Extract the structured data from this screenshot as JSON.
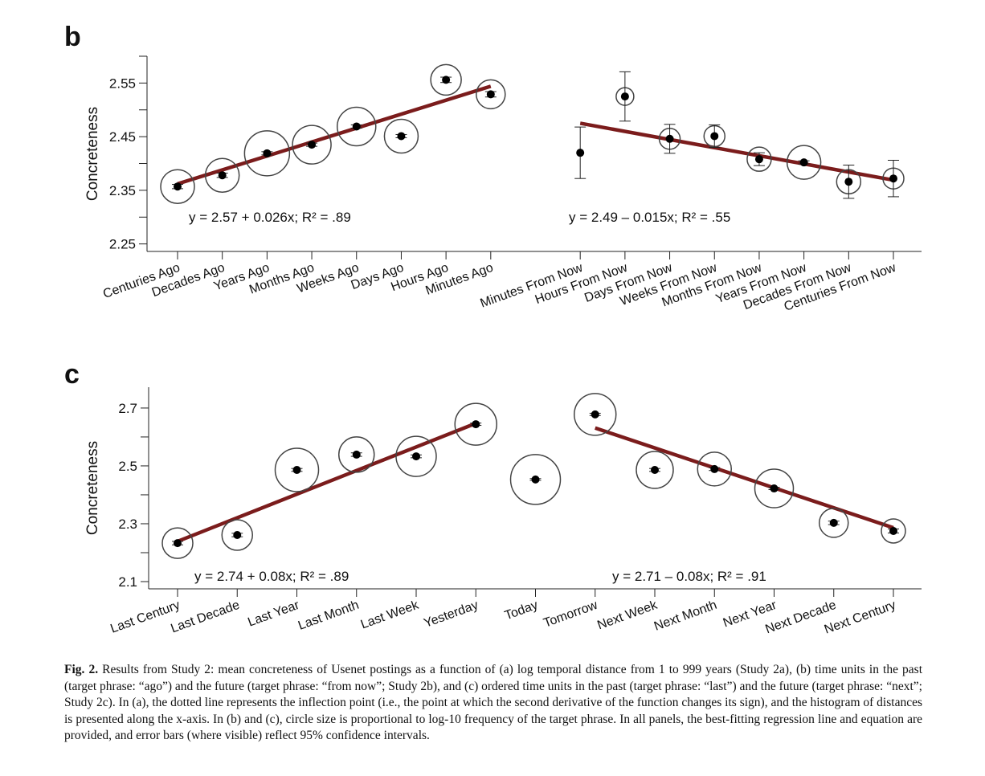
{
  "chart_data": [
    {
      "type": "scatter",
      "panel": "b",
      "y_label": "Concreteness",
      "categories": [
        "Centuries Ago",
        "Decades Ago",
        "Years Ago",
        "Months Ago",
        "Weeks Ago",
        "Days Ago",
        "Hours Ago",
        "Minutes Ago",
        null,
        "Minutes From Now",
        "Hours From Now",
        "Days From Now",
        "Weeks From Now",
        "Months From Now",
        "Years From Now",
        "Decades From Now",
        "Centuries From Now"
      ],
      "series": [
        {
          "color": "#000000",
          "values": [
            2.357,
            2.378,
            2.419,
            2.435,
            2.469,
            2.451,
            2.556,
            2.529,
            null,
            2.42,
            2.525,
            2.446,
            2.451,
            2.408,
            2.402,
            2.366,
            2.372
          ],
          "errors": [
            0.004,
            0.004,
            0.003,
            0.003,
            0.003,
            0.003,
            0.005,
            0.005,
            null,
            0.048,
            0.046,
            0.027,
            0.021,
            0.012,
            0.003,
            0.031,
            0.034
          ],
          "sizes": [
            21,
            21,
            28,
            24,
            24,
            21,
            19,
            18,
            null,
            null,
            11,
            13,
            13,
            15,
            21,
            15,
            13
          ]
        }
      ],
      "fits": [
        {
          "color": "#7b1c1c",
          "categories": [
            "Centuries Ago",
            "Minutes Ago"
          ],
          "values": [
            2.362,
            2.544
          ],
          "equation": "y = 2.57 + 0.026x; R² = .89"
        },
        {
          "color": "#7b1c1c",
          "categories": [
            "Minutes From Now",
            "Centuries From Now"
          ],
          "values": [
            2.475,
            2.369
          ],
          "equation": "y = 2.49 – 0.015x; R² = .55"
        }
      ],
      "ylim": [
        2.236,
        2.6
      ],
      "yticks": [
        2.25,
        2.35,
        2.45,
        2.55
      ],
      "yminor": [
        2.3,
        2.4,
        2.5,
        2.6
      ]
    },
    {
      "type": "scatter",
      "panel": "c",
      "y_label": "Concreteness",
      "categories": [
        "Last Century",
        "Last Decade",
        "Last Year",
        "Last Month",
        "Last Week",
        "Yesterday",
        "Today",
        "Tomorrow",
        "Next Week",
        "Next Month",
        "Next Year",
        "Next Decade",
        "Next Century"
      ],
      "series": [
        {
          "color": "#000000",
          "values": [
            2.233,
            2.261,
            2.486,
            2.539,
            2.533,
            2.644,
            2.453,
            2.678,
            2.486,
            2.489,
            2.422,
            2.303,
            2.275
          ],
          "errors": [
            0.006,
            0.006,
            0.005,
            0.006,
            0.005,
            0.004,
            0.003,
            0.004,
            0.005,
            0.005,
            0.004,
            0.006,
            0.007
          ],
          "sizes": [
            19,
            19,
            27,
            22,
            25,
            26,
            31,
            26,
            23,
            21,
            24,
            18,
            15
          ]
        }
      ],
      "fits": [
        {
          "color": "#7b1c1c",
          "categories": [
            "Last Century",
            "Yesterday"
          ],
          "values": [
            2.239,
            2.647
          ],
          "equation": "y = 2.74 + 0.08x; R² = .89"
        },
        {
          "color": "#7b1c1c",
          "categories": [
            "Tomorrow",
            "Next Century"
          ],
          "values": [
            2.631,
            2.286
          ],
          "equation": "y = 2.71 – 0.08x; R² = .91"
        }
      ],
      "ylim": [
        2.075,
        2.772
      ],
      "yticks": [
        2.1,
        2.3,
        2.5,
        2.7
      ],
      "yminor": [
        2.2,
        2.4,
        2.6
      ]
    }
  ],
  "caption": {
    "label": "Fig. 2.",
    "text": "Results from Study 2: mean concreteness of Usenet postings as a function of (a) log temporal distance from 1 to 999 years (Study 2a), (b) time units in the past (target phrase: “ago”) and the future (target phrase: “from now”; Study 2b), and (c) ordered time units in the past (target phrase: “last”) and the future (target phrase: “next”; Study 2c). In (a), the dotted line represents the inflection point (i.e., the point at which the second derivative of the function changes its sign), and the histogram of distances is presented along the x-axis. In (b) and (c), circle size is proportional to log-10 frequency of the target phrase. In all panels, the best-fitting regression line and equation are provided, and error bars (where visible) reflect 95% confidence intervals."
  }
}
